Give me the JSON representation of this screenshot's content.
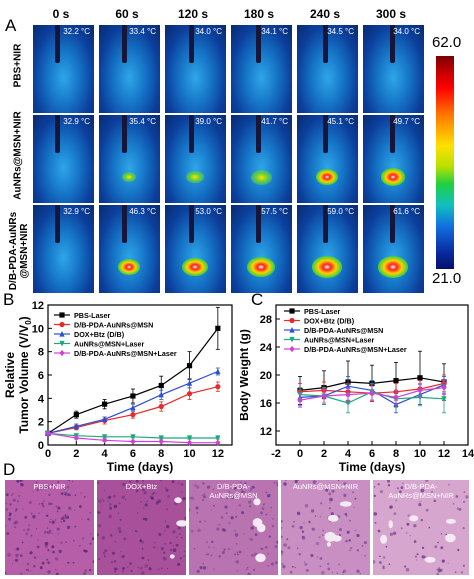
{
  "panel_letters": {
    "a": "A",
    "b": "B",
    "c": "C",
    "d": "D"
  },
  "panel_a": {
    "times": [
      "0 s",
      "60 s",
      "120 s",
      "180 s",
      "240 s",
      "300 s"
    ],
    "rows": [
      {
        "label": "PBS+NIR",
        "temps": [
          "32.2 °C",
          "33.4 °C",
          "34.0 °C",
          "34.1 °C",
          "34.5 °C",
          "34.0 °C"
        ],
        "spot": [
          0,
          0,
          0,
          0,
          0,
          0
        ]
      },
      {
        "label": "AuNRs@MSN+NIR",
        "temps": [
          "32.9 °C",
          "35.4 °C",
          "39.0 °C",
          "41.7 °C",
          "45.1 °C",
          "49.7 °C"
        ],
        "spot": [
          0,
          0.15,
          0.35,
          0.5,
          0.6,
          0.7
        ]
      },
      {
        "label_line1": "D/B-PDA-AuNRs",
        "label_line2": "@MSN+NIR",
        "temps": [
          "32.9 °C",
          "46.3 °C",
          "53.0 °C",
          "57.5 °C",
          "59.0 °C",
          "61.6 °C"
        ],
        "spot": [
          0,
          0.55,
          0.75,
          0.9,
          0.95,
          1.0
        ]
      }
    ],
    "colorbar_max": "62.0",
    "colorbar_min": "21.0",
    "colors": {
      "high": "#c80000",
      "low": "#05106a"
    }
  },
  "chart_data": [
    {
      "type": "line",
      "panel": "B",
      "ylabel_line1": "Relative",
      "ylabel_line2": "Tumor Volume (V/V",
      "ylabel_sub": "0",
      "ylabel_close": ")",
      "xlabel": "Time (days)",
      "xlim": [
        0,
        13
      ],
      "ylim": [
        0,
        12
      ],
      "xticks": [
        "0",
        "2",
        "4",
        "6",
        "8",
        "10",
        "12"
      ],
      "yticks": [
        "0",
        "2",
        "4",
        "6",
        "8",
        "10",
        "12"
      ],
      "x": [
        0,
        2,
        4,
        6,
        8,
        10,
        12
      ],
      "legend_position": "top-left",
      "series": [
        {
          "name": "PBS-Laser",
          "color": "#000000",
          "marker": "square",
          "values": [
            1.0,
            2.6,
            3.5,
            4.2,
            5.1,
            6.8,
            10.0
          ],
          "err": [
            0.1,
            0.3,
            0.4,
            0.6,
            0.8,
            1.2,
            1.8
          ]
        },
        {
          "name": "D/B-PDA-AuNRs@MSN",
          "color": "#e8282a",
          "marker": "circle",
          "values": [
            1.0,
            1.5,
            2.1,
            2.6,
            3.3,
            4.4,
            5.0
          ],
          "err": [
            0.1,
            0.2,
            0.3,
            0.3,
            0.4,
            0.5,
            0.4
          ]
        },
        {
          "name": "DOX+Btz (D/B)",
          "color": "#2a4fd8",
          "marker": "triangle",
          "values": [
            1.0,
            1.6,
            2.2,
            3.2,
            4.3,
            5.3,
            6.3
          ],
          "err": [
            0.1,
            0.2,
            0.2,
            0.3,
            0.4,
            0.4,
            0.3
          ]
        },
        {
          "name": "AuNRs@MSN+Laser",
          "color": "#1ea87a",
          "marker": "triangle-down",
          "values": [
            1.0,
            0.8,
            0.7,
            0.7,
            0.6,
            0.6,
            0.6
          ],
          "err": [
            0.05,
            0.1,
            0.1,
            0.1,
            0.1,
            0.1,
            0.1
          ]
        },
        {
          "name": "D/B-PDA-AuNRs@MSN+Laser",
          "color": "#d040d8",
          "marker": "diamond",
          "values": [
            1.0,
            0.6,
            0.4,
            0.3,
            0.3,
            0.2,
            0.2
          ],
          "err": [
            0.05,
            0.1,
            0.1,
            0.05,
            0.05,
            0.05,
            0.05
          ]
        }
      ]
    },
    {
      "type": "line",
      "panel": "C",
      "ylabel": "Body Weight (g)",
      "xlabel": "Time (days)",
      "xlim": [
        -2,
        14
      ],
      "ylim": [
        10,
        30
      ],
      "xticks": [
        "-2",
        "0",
        "2",
        "4",
        "6",
        "8",
        "10",
        "12",
        "14"
      ],
      "yticks": [
        "12",
        "16",
        "20",
        "24",
        "28"
      ],
      "x": [
        0,
        2,
        4,
        6,
        8,
        10,
        12
      ],
      "legend_position": "top-left",
      "series": [
        {
          "name": "PBS-Laser",
          "color": "#000000",
          "marker": "square",
          "values": [
            17.8,
            18.2,
            19.0,
            18.8,
            19.2,
            19.6,
            19.0
          ],
          "err": [
            2.0,
            2.4,
            3.0,
            2.6,
            2.6,
            3.8,
            2.6
          ]
        },
        {
          "name": "DOX+Btz (D/B)",
          "color": "#e8282a",
          "marker": "circle",
          "values": [
            17.6,
            17.8,
            17.6,
            17.4,
            17.6,
            18.0,
            18.8
          ],
          "err": [
            1.2,
            1.2,
            1.2,
            1.2,
            1.2,
            1.2,
            1.2
          ]
        },
        {
          "name": "D/B-PDA-AuNRs@MSN",
          "color": "#2a4fd8",
          "marker": "triangle",
          "values": [
            16.8,
            17.0,
            18.4,
            17.8,
            15.8,
            17.2,
            18.6
          ],
          "err": [
            1.2,
            1.2,
            1.4,
            1.4,
            1.2,
            1.4,
            1.2
          ]
        },
        {
          "name": "AuNRs@MSN+Laser",
          "color": "#1ea87a",
          "marker": "triangle-down",
          "values": [
            17.2,
            17.0,
            16.0,
            17.6,
            16.6,
            16.8,
            16.6
          ],
          "err": [
            1.0,
            1.2,
            1.4,
            1.2,
            1.2,
            1.2,
            2.0
          ]
        },
        {
          "name": "D/B-PDA-AuNRs@MSN+Laser",
          "color": "#d040d8",
          "marker": "diamond",
          "values": [
            16.4,
            17.0,
            17.2,
            17.4,
            16.8,
            17.8,
            18.2
          ],
          "err": [
            1.0,
            1.0,
            1.0,
            1.0,
            1.0,
            1.0,
            1.0
          ]
        }
      ]
    }
  ],
  "panel_d": {
    "labels_line1": [
      "PBS+NIR",
      "DOX+Btz",
      "D/B-PDA-",
      "AuNRs@MSN+NIR",
      "D/B-PDA-"
    ],
    "labels_line2": [
      "",
      "",
      "AuNRs@MSN",
      "",
      "AuNRs@MSN+NIR"
    ]
  }
}
